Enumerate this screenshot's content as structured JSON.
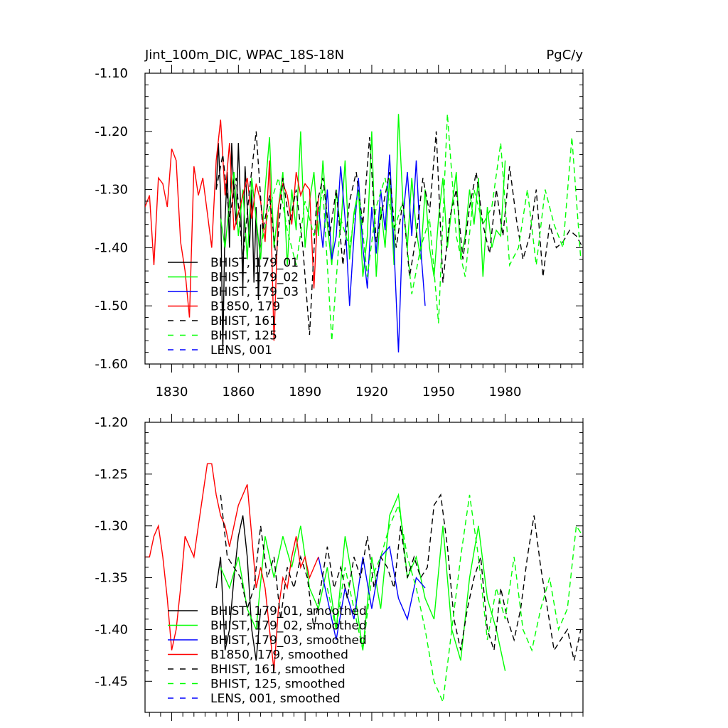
{
  "chart_data": [
    {
      "type": "line",
      "title": "Jint_100m_DIC, WPAC_18S-18N",
      "units": "PgC/y",
      "xlim": [
        1818,
        2015
      ],
      "ylim": [
        -1.6,
        -1.1
      ],
      "yticks": [
        -1.6,
        -1.5,
        -1.4,
        -1.3,
        -1.2,
        -1.1
      ],
      "ytick_labels": [
        "-1.60",
        "-1.50",
        "-1.40",
        "-1.30",
        "-1.20",
        "-1.10"
      ],
      "xticks": [
        1830,
        1860,
        1890,
        1920,
        1950,
        1980
      ],
      "xtick_labels": [
        "1830",
        "1860",
        "1890",
        "1920",
        "1950",
        "1980"
      ],
      "legend_position": "lower-left",
      "series": [
        {
          "name": "BHIST, 179_01",
          "color": "#000000",
          "dash": false,
          "x": [
            1850,
            1851,
            1852,
            1853,
            1854,
            1855,
            1856,
            1857,
            1858,
            1859,
            1860,
            1861,
            1862,
            1863,
            1864,
            1865,
            1866,
            1867,
            1868,
            1869,
            1870
          ],
          "y": [
            -1.3,
            -1.22,
            -1.31,
            -1.58,
            -1.35,
            -1.27,
            -1.4,
            -1.22,
            -1.31,
            -1.36,
            -1.22,
            -1.33,
            -1.47,
            -1.26,
            -1.33,
            -1.4,
            -1.3,
            -1.46,
            -1.33,
            -1.49,
            -1.36
          ]
        },
        {
          "name": "BHIST, 179_02",
          "color": "#00ff00",
          "dash": false,
          "x": [
            1852,
            1854,
            1856,
            1858,
            1860,
            1862,
            1864,
            1866,
            1868,
            1870,
            1872,
            1874,
            1876,
            1878,
            1880,
            1882,
            1884,
            1886,
            1888,
            1890,
            1892,
            1894,
            1896,
            1898,
            1900,
            1902,
            1904,
            1906,
            1908,
            1910,
            1912,
            1914,
            1916,
            1918,
            1920,
            1922,
            1924,
            1926,
            1928,
            1930,
            1932,
            1934,
            1936,
            1938,
            1940,
            1942,
            1944,
            1946,
            1948,
            1950,
            1952,
            1954,
            1956,
            1958,
            1960,
            1962,
            1964,
            1966,
            1968,
            1970,
            1972,
            1974,
            1976,
            1978,
            1980
          ],
          "y": [
            -1.35,
            -1.4,
            -1.32,
            -1.27,
            -1.38,
            -1.3,
            -1.42,
            -1.28,
            -1.35,
            -1.42,
            -1.3,
            -1.21,
            -1.4,
            -1.33,
            -1.27,
            -1.43,
            -1.3,
            -1.37,
            -1.2,
            -1.4,
            -1.32,
            -1.27,
            -1.38,
            -1.25,
            -1.36,
            -1.43,
            -1.3,
            -1.37,
            -1.25,
            -1.42,
            -1.34,
            -1.3,
            -1.45,
            -1.38,
            -1.2,
            -1.45,
            -1.33,
            -1.4,
            -1.28,
            -1.43,
            -1.17,
            -1.32,
            -1.4,
            -1.28,
            -1.37,
            -1.42,
            -1.3,
            -1.4,
            -1.45,
            -1.35,
            -1.28,
            -1.4,
            -1.33,
            -1.27,
            -1.42,
            -1.38,
            -1.3,
            -1.36,
            -1.28,
            -1.45,
            -1.33,
            -1.4,
            -1.37,
            -1.38,
            -1.25
          ]
        },
        {
          "name": "BHIST, 179_03",
          "color": "#0000ff",
          "dash": false,
          "x": [
            1896,
            1898,
            1900,
            1902,
            1904,
            1906,
            1908,
            1910,
            1912,
            1914,
            1916,
            1918,
            1920,
            1922,
            1924,
            1926,
            1928,
            1930,
            1932,
            1934,
            1936,
            1938,
            1940,
            1942,
            1944
          ],
          "y": [
            -1.33,
            -1.4,
            -1.3,
            -1.42,
            -1.38,
            -1.26,
            -1.35,
            -1.5,
            -1.38,
            -1.28,
            -1.4,
            -1.47,
            -1.33,
            -1.41,
            -1.3,
            -1.37,
            -1.24,
            -1.4,
            -1.58,
            -1.35,
            -1.27,
            -1.38,
            -1.25,
            -1.4,
            -1.5
          ]
        },
        {
          "name": "B1850, 179",
          "color": "#ff0000",
          "dash": false,
          "x": [
            1818,
            1820,
            1822,
            1824,
            1826,
            1828,
            1830,
            1832,
            1834,
            1836,
            1838,
            1840,
            1842,
            1844,
            1846,
            1848,
            1850,
            1852,
            1854,
            1856,
            1858,
            1860,
            1862,
            1864,
            1866,
            1868,
            1870,
            1872,
            1874,
            1876,
            1878,
            1880,
            1882,
            1884,
            1886,
            1888,
            1890,
            1892,
            1894,
            1896
          ],
          "y": [
            -1.33,
            -1.31,
            -1.43,
            -1.28,
            -1.29,
            -1.33,
            -1.23,
            -1.25,
            -1.39,
            -1.44,
            -1.52,
            -1.26,
            -1.31,
            -1.28,
            -1.34,
            -1.4,
            -1.25,
            -1.18,
            -1.31,
            -1.22,
            -1.37,
            -1.34,
            -1.31,
            -1.28,
            -1.35,
            -1.29,
            -1.32,
            -1.39,
            -1.25,
            -1.56,
            -1.33,
            -1.29,
            -1.31,
            -1.36,
            -1.27,
            -1.31,
            -1.29,
            -1.3,
            -1.47,
            -1.31
          ]
        },
        {
          "name": "BHIST, 161",
          "color": "#000000",
          "dash": true,
          "x": [
            1850,
            1853,
            1856,
            1859,
            1862,
            1865,
            1868,
            1871,
            1874,
            1877,
            1880,
            1883,
            1886,
            1889,
            1892,
            1895,
            1898,
            1901,
            1904,
            1907,
            1910,
            1913,
            1916,
            1919,
            1922,
            1925,
            1928,
            1931,
            1934,
            1937,
            1940,
            1943,
            1946,
            1949,
            1952,
            1955,
            1958,
            1961,
            1964,
            1967,
            1970,
            1973,
            1976,
            1979,
            1982,
            1985,
            1988,
            1991,
            1994,
            1997,
            2000,
            2003,
            2006,
            2009,
            2012,
            2015
          ],
          "y": [
            -1.3,
            -1.24,
            -1.35,
            -1.28,
            -1.42,
            -1.3,
            -1.2,
            -1.37,
            -1.31,
            -1.42,
            -1.28,
            -1.36,
            -1.3,
            -1.4,
            -1.55,
            -1.33,
            -1.28,
            -1.38,
            -1.3,
            -1.43,
            -1.32,
            -1.27,
            -1.36,
            -1.21,
            -1.39,
            -1.33,
            -1.27,
            -1.4,
            -1.32,
            -1.45,
            -1.38,
            -1.28,
            -1.34,
            -1.2,
            -1.46,
            -1.35,
            -1.3,
            -1.42,
            -1.33,
            -1.27,
            -1.36,
            -1.41,
            -1.3,
            -1.38,
            -1.26,
            -1.35,
            -1.42,
            -1.38,
            -1.3,
            -1.45,
            -1.36,
            -1.4,
            -1.39,
            -1.37,
            -1.38,
            -1.4
          ]
        },
        {
          "name": "BHIST, 125",
          "color": "#00ff00",
          "dash": true,
          "x": [
            1870,
            1874,
            1878,
            1882,
            1886,
            1890,
            1894,
            1898,
            1902,
            1906,
            1910,
            1914,
            1918,
            1922,
            1926,
            1930,
            1934,
            1938,
            1942,
            1946,
            1950,
            1954,
            1958,
            1962,
            1966,
            1970,
            1974,
            1978,
            1982,
            1986,
            1990,
            1994,
            1998,
            2002,
            2006,
            2010,
            2014
          ],
          "y": [
            -1.4,
            -1.33,
            -1.28,
            -1.37,
            -1.43,
            -1.32,
            -1.38,
            -1.3,
            -1.56,
            -1.35,
            -1.4,
            -1.3,
            -1.45,
            -1.33,
            -1.28,
            -1.37,
            -1.32,
            -1.48,
            -1.4,
            -1.35,
            -1.53,
            -1.17,
            -1.38,
            -1.45,
            -1.3,
            -1.36,
            -1.33,
            -1.22,
            -1.43,
            -1.4,
            -1.3,
            -1.43,
            -1.3,
            -1.36,
            -1.4,
            -1.21,
            -1.42
          ]
        },
        {
          "name": "LENS, 001",
          "color": "#0000ff",
          "dash": true,
          "x": [],
          "y": []
        }
      ]
    },
    {
      "type": "line",
      "title": "",
      "units": "",
      "xlim": [
        1818,
        2015
      ],
      "ylim": [
        -1.48,
        -1.2
      ],
      "yticks": [
        -1.45,
        -1.4,
        -1.35,
        -1.3,
        -1.25,
        -1.2
      ],
      "ytick_labels": [
        "-1.45",
        "-1.40",
        "-1.35",
        "-1.30",
        "-1.25",
        "-1.20"
      ],
      "xticks": [
        1830,
        1860,
        1890,
        1920,
        1950,
        1980
      ],
      "xtick_labels": [],
      "legend_position": "lower-left",
      "series": [
        {
          "name": "BHIST, 179_01, smoothed",
          "color": "#000000",
          "dash": false,
          "x": [
            1850,
            1852,
            1854,
            1856,
            1858,
            1860,
            1862,
            1864,
            1866,
            1868,
            1870
          ],
          "y": [
            -1.36,
            -1.33,
            -1.42,
            -1.4,
            -1.35,
            -1.31,
            -1.29,
            -1.33,
            -1.4,
            -1.43,
            -1.38
          ]
        },
        {
          "name": "BHIST, 179_02, smoothed",
          "color": "#00ff00",
          "dash": false,
          "x": [
            1852,
            1856,
            1860,
            1864,
            1868,
            1872,
            1876,
            1880,
            1884,
            1888,
            1892,
            1896,
            1900,
            1904,
            1908,
            1912,
            1916,
            1920,
            1924,
            1928,
            1932,
            1936,
            1940,
            1944,
            1948,
            1952,
            1956,
            1960,
            1964,
            1968,
            1972,
            1976,
            1980
          ],
          "y": [
            -1.34,
            -1.36,
            -1.33,
            -1.38,
            -1.4,
            -1.31,
            -1.35,
            -1.31,
            -1.34,
            -1.3,
            -1.36,
            -1.38,
            -1.34,
            -1.4,
            -1.31,
            -1.36,
            -1.42,
            -1.33,
            -1.38,
            -1.29,
            -1.27,
            -1.35,
            -1.33,
            -1.37,
            -1.39,
            -1.3,
            -1.4,
            -1.43,
            -1.35,
            -1.3,
            -1.37,
            -1.4,
            -1.44
          ]
        },
        {
          "name": "BHIST, 179_03, smoothed",
          "color": "#0000ff",
          "dash": false,
          "x": [
            1896,
            1900,
            1904,
            1908,
            1912,
            1916,
            1920,
            1924,
            1928,
            1932,
            1936,
            1940,
            1944
          ],
          "y": [
            -1.33,
            -1.37,
            -1.41,
            -1.36,
            -1.39,
            -1.33,
            -1.38,
            -1.33,
            -1.32,
            -1.37,
            -1.39,
            -1.35,
            -1.36
          ]
        },
        {
          "name": "B1850, 179, smoothed",
          "color": "#ff0000",
          "dash": false,
          "x": [
            1818,
            1820,
            1822,
            1824,
            1826,
            1828,
            1830,
            1832,
            1834,
            1836,
            1838,
            1840,
            1842,
            1844,
            1846,
            1848,
            1850,
            1852,
            1854,
            1856,
            1858,
            1860,
            1862,
            1864,
            1866,
            1868,
            1870,
            1872,
            1874,
            1876,
            1878,
            1880,
            1882,
            1884,
            1886,
            1888,
            1890,
            1892,
            1894,
            1896
          ],
          "y": [
            -1.33,
            -1.33,
            -1.31,
            -1.3,
            -1.33,
            -1.37,
            -1.42,
            -1.4,
            -1.36,
            -1.31,
            -1.32,
            -1.33,
            -1.3,
            -1.27,
            -1.24,
            -1.24,
            -1.27,
            -1.29,
            -1.3,
            -1.32,
            -1.3,
            -1.28,
            -1.27,
            -1.26,
            -1.31,
            -1.36,
            -1.34,
            -1.36,
            -1.4,
            -1.44,
            -1.38,
            -1.35,
            -1.36,
            -1.33,
            -1.31,
            -1.34,
            -1.33,
            -1.35,
            -1.34,
            -1.33
          ]
        },
        {
          "name": "BHIST, 161, smoothed",
          "color": "#000000",
          "dash": true,
          "x": [
            1852,
            1855,
            1858,
            1861,
            1864,
            1867,
            1870,
            1873,
            1876,
            1879,
            1882,
            1885,
            1888,
            1891,
            1894,
            1897,
            1900,
            1903,
            1906,
            1909,
            1912,
            1915,
            1918,
            1921,
            1924,
            1927,
            1930,
            1933,
            1936,
            1939,
            1942,
            1945,
            1948,
            1951,
            1954,
            1957,
            1960,
            1963,
            1966,
            1969,
            1972,
            1975,
            1978,
            1981,
            1984,
            1987,
            1990,
            1993,
            1996,
            1999,
            2002,
            2005,
            2008,
            2011,
            2014
          ],
          "y": [
            -1.27,
            -1.33,
            -1.34,
            -1.35,
            -1.38,
            -1.36,
            -1.3,
            -1.35,
            -1.33,
            -1.39,
            -1.34,
            -1.36,
            -1.33,
            -1.35,
            -1.4,
            -1.36,
            -1.32,
            -1.36,
            -1.34,
            -1.37,
            -1.33,
            -1.35,
            -1.31,
            -1.36,
            -1.33,
            -1.34,
            -1.36,
            -1.3,
            -1.35,
            -1.33,
            -1.35,
            -1.34,
            -1.28,
            -1.27,
            -1.32,
            -1.39,
            -1.42,
            -1.38,
            -1.35,
            -1.33,
            -1.4,
            -1.42,
            -1.36,
            -1.39,
            -1.41,
            -1.38,
            -1.33,
            -1.29,
            -1.34,
            -1.38,
            -1.42,
            -1.41,
            -1.4,
            -1.43,
            -1.4
          ]
        },
        {
          "name": "BHIST, 125, smoothed",
          "color": "#00ff00",
          "dash": true,
          "x": [
            1900,
            1904,
            1908,
            1912,
            1916,
            1920,
            1924,
            1928,
            1932,
            1936,
            1940,
            1944,
            1948,
            1952,
            1956,
            1960,
            1964,
            1968,
            1972,
            1976,
            1980,
            1984,
            1988,
            1992,
            1996,
            2000,
            2004,
            2008,
            2012,
            2015
          ],
          "y": [
            -1.36,
            -1.4,
            -1.34,
            -1.38,
            -1.42,
            -1.35,
            -1.33,
            -1.3,
            -1.28,
            -1.33,
            -1.36,
            -1.4,
            -1.45,
            -1.47,
            -1.4,
            -1.33,
            -1.27,
            -1.33,
            -1.41,
            -1.36,
            -1.39,
            -1.33,
            -1.4,
            -1.42,
            -1.38,
            -1.35,
            -1.4,
            -1.38,
            -1.3,
            -1.31
          ]
        },
        {
          "name": "LENS, 001, smoothed",
          "color": "#0000ff",
          "dash": true,
          "x": [],
          "y": []
        }
      ]
    }
  ]
}
